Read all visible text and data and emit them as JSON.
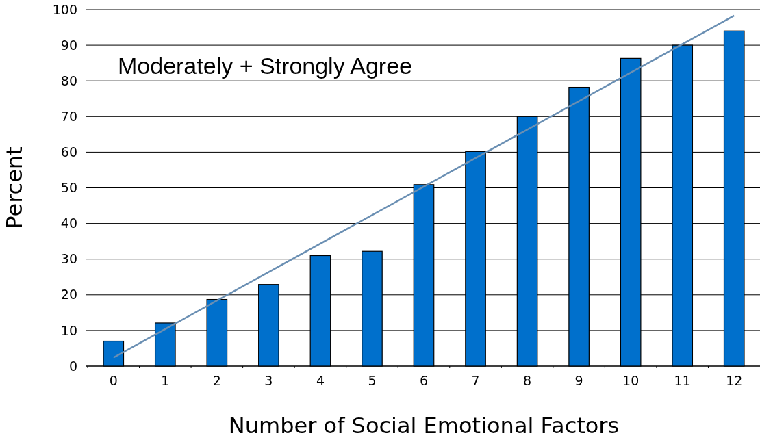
{
  "chart_data": {
    "type": "bar",
    "title": "Moderately + Strongly Agree",
    "xlabel": "Number of Social Emotional Factors",
    "ylabel": "Percent",
    "categories": [
      "0",
      "1",
      "2",
      "3",
      "4",
      "5",
      "6",
      "7",
      "8",
      "9",
      "10",
      "11",
      "12"
    ],
    "series": [
      {
        "color": "#0070cc",
        "values": [
          7,
          12.1,
          18.7,
          22.9,
          31,
          32.2,
          50.9,
          60.2,
          70,
          78.2,
          86.3,
          90,
          94
        ]
      },
      {
        "type": "line",
        "color": "#6a8fb3",
        "x": [
          "0",
          "12"
        ],
        "values": [
          2.4,
          98.3
        ]
      }
    ],
    "ylim": [
      0,
      100
    ],
    "yticks": [
      0,
      10,
      20,
      30,
      40,
      50,
      60,
      70,
      80,
      90,
      100
    ],
    "grid": "y",
    "marker": "none"
  }
}
